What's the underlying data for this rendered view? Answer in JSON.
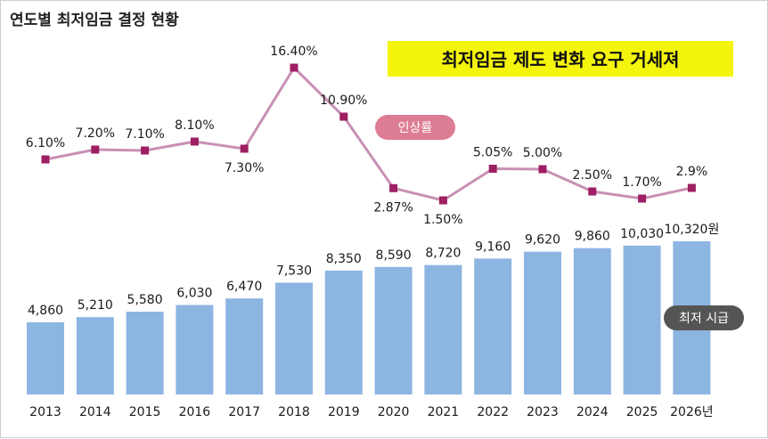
{
  "chart_data": {
    "type": "bar",
    "title": "연도별 최저임금 결정 현황",
    "banner": "최저임금 제도 변화 요구 거세져",
    "categories": [
      "2013",
      "2014",
      "2015",
      "2016",
      "2017",
      "2018",
      "2019",
      "2020",
      "2021",
      "2022",
      "2023",
      "2024",
      "2025",
      "2026년"
    ],
    "series": [
      {
        "name": "최저 시급",
        "type": "bar",
        "values": [
          4860,
          5210,
          5580,
          6030,
          6470,
          7530,
          8350,
          8590,
          8720,
          9160,
          9620,
          9860,
          10030,
          10320
        ],
        "labels": [
          "4,860",
          "5,210",
          "5,580",
          "6,030",
          "6,470",
          "7,530",
          "8,350",
          "8,590",
          "8,720",
          "9,160",
          "9,620",
          "9,860",
          "10,030",
          "10,320원"
        ],
        "color": "#8db5e2"
      },
      {
        "name": "인상률",
        "type": "line",
        "values": [
          6.1,
          7.2,
          7.1,
          8.1,
          7.3,
          16.4,
          10.9,
          2.87,
          1.5,
          5.05,
          5.0,
          2.5,
          1.7,
          2.9
        ],
        "labels": [
          "6.10%",
          "7.20%",
          "7.10%",
          "8.10%",
          "7.30%",
          "16.40%",
          "10.90%",
          "2.87%",
          "1.50%",
          "5.05%",
          "5.00%",
          "2.50%",
          "1.70%",
          "2.9%"
        ],
        "line_color": "#c890b4",
        "marker_color": "#9e1f63"
      }
    ],
    "legend": {
      "rate": "인상률",
      "wage": "최저 시급",
      "rate_color": "#dd7d93",
      "wage_color": "#555555"
    },
    "banner_color": "#f4f40c"
  }
}
